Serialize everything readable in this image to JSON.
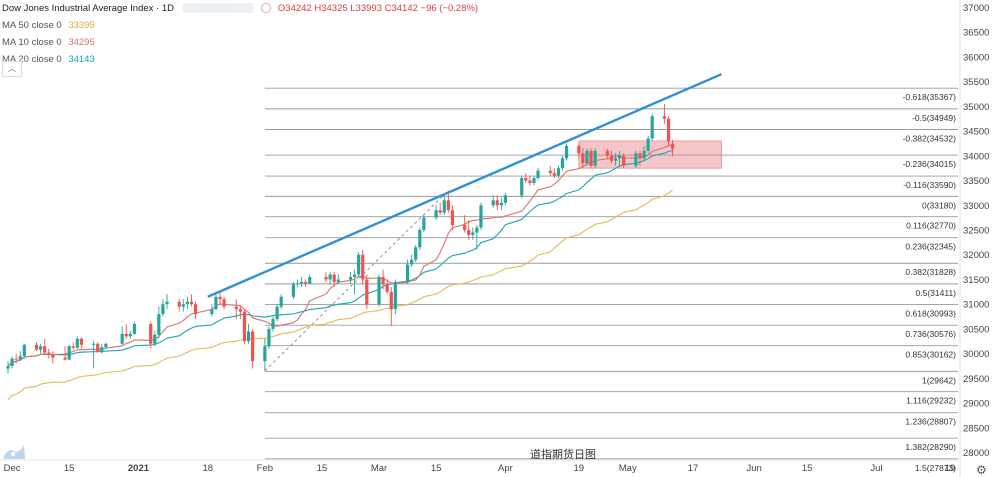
{
  "header": {
    "title": "Dow Jones Industrial Average Index · 1D",
    "ohlc": "O34242 H34325 L33993 C34142 −96 (−0.28%)"
  },
  "indicators": [
    {
      "label": "MA 50 close 0",
      "value": "33395",
      "color": "#e8b85a"
    },
    {
      "label": "MA 10 close 0",
      "value": "34295",
      "color": "#d9736a"
    },
    {
      "label": "MA 20 close 0",
      "value": "34143",
      "color": "#1aa3b8"
    }
  ],
  "footer_label": "道指期货日图",
  "settings_icon": "gear-icon",
  "colors": {
    "up": "#26a69a",
    "down": "#ef5350",
    "trendline": "#2f90d6",
    "zone": "#f2b1b5"
  },
  "chart_data": {
    "type": "candlestick",
    "y_axis": {
      "ticks": [
        28000,
        28500,
        29000,
        29500,
        30000,
        30500,
        31000,
        31500,
        32000,
        32500,
        33000,
        33500,
        34000,
        34500,
        35000,
        35500,
        36000,
        36500,
        37000
      ],
      "ylim": [
        27850,
        37150
      ]
    },
    "x_axis": {
      "ticks": [
        "Dec",
        "15",
        "2021",
        "18",
        "Feb",
        "15",
        "Mar",
        "15",
        "Apr",
        "19",
        "May",
        "17",
        "Jun",
        "15",
        "Jul",
        "19"
      ],
      "xlim": [
        "2020-11-30",
        "2021-07-21"
      ]
    },
    "fib_levels": [
      {
        "label": "-0.618(35367)",
        "value": 35367
      },
      {
        "label": "-0.5(34949)",
        "value": 34949
      },
      {
        "label": "-0.382(34532)",
        "value": 34532
      },
      {
        "label": "-0.236(34015)",
        "value": 34015
      },
      {
        "label": "-0.116(33590)",
        "value": 33590
      },
      {
        "label": "0(33180)",
        "value": 33180
      },
      {
        "label": "0.116(32770)",
        "value": 32770
      },
      {
        "label": "0.236(32345)",
        "value": 32345
      },
      {
        "label": "0.382(31828)",
        "value": 31828
      },
      {
        "label": "0.5(31411)",
        "value": 31411
      },
      {
        "label": "0.618(30993)",
        "value": 30993
      },
      {
        "label": "0.736(30576)",
        "value": 30576
      },
      {
        "label": "0.853(30162)",
        "value": 30162
      },
      {
        "label": "1(29642)",
        "value": 29642
      },
      {
        "label": "1.116(29232)",
        "value": 29232
      },
      {
        "label": "1.236(28807)",
        "value": 28807
      },
      {
        "label": "1.382(28290)",
        "value": 28290
      },
      {
        "label": "1.5(27873)",
        "value": 27873
      }
    ],
    "fib_start_date": "2021-02-01",
    "trendline": {
      "from": [
        "2021-01-18",
        31150
      ],
      "to": [
        "2021-05-24",
        35650
      ]
    },
    "zone": {
      "from_date": "2021-04-19",
      "to_date": "2021-05-24",
      "low": 33750,
      "high": 34300
    },
    "dashed_line": {
      "from": [
        "2021-02-01",
        29650
      ],
      "to": [
        "2021-03-18",
        33300
      ]
    },
    "candles": [
      {
        "d": "2020-11-30",
        "o": 29700,
        "h": 29850,
        "l": 29600,
        "c": 29750
      },
      {
        "d": "2020-12-01",
        "o": 29750,
        "h": 29950,
        "l": 29700,
        "c": 29900
      },
      {
        "d": "2020-12-02",
        "o": 29900,
        "h": 30000,
        "l": 29800,
        "c": 29880
      },
      {
        "d": "2020-12-03",
        "o": 29880,
        "h": 30050,
        "l": 29850,
        "c": 29950
      },
      {
        "d": "2020-12-04",
        "o": 29950,
        "h": 30200,
        "l": 29900,
        "c": 30180
      },
      {
        "d": "2020-12-07",
        "o": 30180,
        "h": 30230,
        "l": 30050,
        "c": 30080
      },
      {
        "d": "2020-12-08",
        "o": 30080,
        "h": 30200,
        "l": 30000,
        "c": 30150
      },
      {
        "d": "2020-12-09",
        "o": 30150,
        "h": 30300,
        "l": 29980,
        "c": 30020
      },
      {
        "d": "2020-12-10",
        "o": 30020,
        "h": 30100,
        "l": 29900,
        "c": 29980
      },
      {
        "d": "2020-12-11",
        "o": 29980,
        "h": 30050,
        "l": 29800,
        "c": 29920
      },
      {
        "d": "2020-12-14",
        "o": 29920,
        "h": 30150,
        "l": 29860,
        "c": 29880
      },
      {
        "d": "2020-12-15",
        "o": 29880,
        "h": 30180,
        "l": 29870,
        "c": 30150
      },
      {
        "d": "2020-12-16",
        "o": 30150,
        "h": 30230,
        "l": 30080,
        "c": 30120
      },
      {
        "d": "2020-12-17",
        "o": 30120,
        "h": 30350,
        "l": 30100,
        "c": 30300
      },
      {
        "d": "2020-12-18",
        "o": 30300,
        "h": 30330,
        "l": 30100,
        "c": 30180
      },
      {
        "d": "2020-12-21",
        "o": 30180,
        "h": 30250,
        "l": 29700,
        "c": 30200
      },
      {
        "d": "2020-12-22",
        "o": 30200,
        "h": 30230,
        "l": 30050,
        "c": 30030
      },
      {
        "d": "2020-12-23",
        "o": 30030,
        "h": 30200,
        "l": 30000,
        "c": 30130
      },
      {
        "d": "2020-12-24",
        "o": 30130,
        "h": 30220,
        "l": 30100,
        "c": 30200
      },
      {
        "d": "2020-12-28",
        "o": 30200,
        "h": 30550,
        "l": 30180,
        "c": 30400
      },
      {
        "d": "2020-12-29",
        "o": 30400,
        "h": 30600,
        "l": 30300,
        "c": 30350
      },
      {
        "d": "2020-12-30",
        "o": 30350,
        "h": 30450,
        "l": 30300,
        "c": 30400
      },
      {
        "d": "2020-12-31",
        "o": 30400,
        "h": 30650,
        "l": 30380,
        "c": 30600
      },
      {
        "d": "2021-01-04",
        "o": 30600,
        "h": 30650,
        "l": 30100,
        "c": 30200
      },
      {
        "d": "2021-01-05",
        "o": 30200,
        "h": 30450,
        "l": 30150,
        "c": 30380
      },
      {
        "d": "2021-01-06",
        "o": 30380,
        "h": 30950,
        "l": 30300,
        "c": 30800
      },
      {
        "d": "2021-01-07",
        "o": 30800,
        "h": 31100,
        "l": 30750,
        "c": 31000
      },
      {
        "d": "2021-01-08",
        "o": 31000,
        "h": 31200,
        "l": 30900,
        "c": 31050
      },
      {
        "d": "2021-01-11",
        "o": 31050,
        "h": 31100,
        "l": 30850,
        "c": 30950
      },
      {
        "d": "2021-01-12",
        "o": 30950,
        "h": 31100,
        "l": 30850,
        "c": 31000
      },
      {
        "d": "2021-01-13",
        "o": 31000,
        "h": 31150,
        "l": 30900,
        "c": 31050
      },
      {
        "d": "2021-01-14",
        "o": 31050,
        "h": 31200,
        "l": 30950,
        "c": 31000
      },
      {
        "d": "2021-01-15",
        "o": 31000,
        "h": 31050,
        "l": 30700,
        "c": 30800
      },
      {
        "d": "2021-01-19",
        "o": 30800,
        "h": 31000,
        "l": 30750,
        "c": 30900
      },
      {
        "d": "2021-01-20",
        "o": 30900,
        "h": 31200,
        "l": 30880,
        "c": 31150
      },
      {
        "d": "2021-01-21",
        "o": 31150,
        "h": 31250,
        "l": 31000,
        "c": 31100
      },
      {
        "d": "2021-01-22",
        "o": 31100,
        "h": 31150,
        "l": 30900,
        "c": 30950
      },
      {
        "d": "2021-01-25",
        "o": 30950,
        "h": 31100,
        "l": 30700,
        "c": 30900
      },
      {
        "d": "2021-01-26",
        "o": 30900,
        "h": 30950,
        "l": 30700,
        "c": 30850
      },
      {
        "d": "2021-01-27",
        "o": 30850,
        "h": 30900,
        "l": 30200,
        "c": 30250
      },
      {
        "d": "2021-01-28",
        "o": 30250,
        "h": 30600,
        "l": 30200,
        "c": 30450
      },
      {
        "d": "2021-01-29",
        "o": 30450,
        "h": 30500,
        "l": 29700,
        "c": 29850
      },
      {
        "d": "2021-02-01",
        "o": 29850,
        "h": 30300,
        "l": 29650,
        "c": 30150
      },
      {
        "d": "2021-02-02",
        "o": 30150,
        "h": 30550,
        "l": 30100,
        "c": 30500
      },
      {
        "d": "2021-02-03",
        "o": 30500,
        "h": 30750,
        "l": 30450,
        "c": 30700
      },
      {
        "d": "2021-02-04",
        "o": 30700,
        "h": 31000,
        "l": 30650,
        "c": 30950
      },
      {
        "d": "2021-02-05",
        "o": 30950,
        "h": 31200,
        "l": 30900,
        "c": 31150
      },
      {
        "d": "2021-02-08",
        "o": 31150,
        "h": 31450,
        "l": 31100,
        "c": 31400
      },
      {
        "d": "2021-02-09",
        "o": 31400,
        "h": 31500,
        "l": 31350,
        "c": 31420
      },
      {
        "d": "2021-02-10",
        "o": 31420,
        "h": 31550,
        "l": 31350,
        "c": 31450
      },
      {
        "d": "2021-02-11",
        "o": 31450,
        "h": 31500,
        "l": 31350,
        "c": 31420
      },
      {
        "d": "2021-02-12",
        "o": 31420,
        "h": 31600,
        "l": 31400,
        "c": 31550
      },
      {
        "d": "2021-02-16",
        "o": 31550,
        "h": 31650,
        "l": 31450,
        "c": 31500
      },
      {
        "d": "2021-02-17",
        "o": 31500,
        "h": 31650,
        "l": 31400,
        "c": 31600
      },
      {
        "d": "2021-02-18",
        "o": 31600,
        "h": 31650,
        "l": 31350,
        "c": 31450
      },
      {
        "d": "2021-02-19",
        "o": 31450,
        "h": 31600,
        "l": 31400,
        "c": 31500
      },
      {
        "d": "2021-02-22",
        "o": 31500,
        "h": 31650,
        "l": 31400,
        "c": 31550
      },
      {
        "d": "2021-02-23",
        "o": 31550,
        "h": 31700,
        "l": 31200,
        "c": 31600
      },
      {
        "d": "2021-02-24",
        "o": 31600,
        "h": 32050,
        "l": 31550,
        "c": 32000
      },
      {
        "d": "2021-02-25",
        "o": 32000,
        "h": 32100,
        "l": 31400,
        "c": 31500
      },
      {
        "d": "2021-02-26",
        "o": 31500,
        "h": 31600,
        "l": 30900,
        "c": 31000
      },
      {
        "d": "2021-03-01",
        "o": 31000,
        "h": 31600,
        "l": 30950,
        "c": 31550
      },
      {
        "d": "2021-03-02",
        "o": 31550,
        "h": 31700,
        "l": 31300,
        "c": 31400
      },
      {
        "d": "2021-03-03",
        "o": 31400,
        "h": 31500,
        "l": 31200,
        "c": 31250
      },
      {
        "d": "2021-03-04",
        "o": 31250,
        "h": 31350,
        "l": 30550,
        "c": 30900
      },
      {
        "d": "2021-03-05",
        "o": 30900,
        "h": 31500,
        "l": 30800,
        "c": 31450
      },
      {
        "d": "2021-03-08",
        "o": 31450,
        "h": 31900,
        "l": 31400,
        "c": 31800
      },
      {
        "d": "2021-03-09",
        "o": 31800,
        "h": 32000,
        "l": 31750,
        "c": 31900
      },
      {
        "d": "2021-03-10",
        "o": 31900,
        "h": 32200,
        "l": 31850,
        "c": 32150
      },
      {
        "d": "2021-03-11",
        "o": 32150,
        "h": 32550,
        "l": 32100,
        "c": 32500
      },
      {
        "d": "2021-03-12",
        "o": 32500,
        "h": 32800,
        "l": 32450,
        "c": 32750
      },
      {
        "d": "2021-03-15",
        "o": 32750,
        "h": 33000,
        "l": 32700,
        "c": 32900
      },
      {
        "d": "2021-03-16",
        "o": 32900,
        "h": 33050,
        "l": 32800,
        "c": 32850
      },
      {
        "d": "2021-03-17",
        "o": 32850,
        "h": 33200,
        "l": 32800,
        "c": 33100
      },
      {
        "d": "2021-03-18",
        "o": 33100,
        "h": 33300,
        "l": 32850,
        "c": 32900
      },
      {
        "d": "2021-03-19",
        "o": 32900,
        "h": 33000,
        "l": 32500,
        "c": 32600
      },
      {
        "d": "2021-03-22",
        "o": 32600,
        "h": 32800,
        "l": 32450,
        "c": 32500
      },
      {
        "d": "2021-03-23",
        "o": 32500,
        "h": 32700,
        "l": 32300,
        "c": 32400
      },
      {
        "d": "2021-03-24",
        "o": 32400,
        "h": 32550,
        "l": 32300,
        "c": 32450
      },
      {
        "d": "2021-03-25",
        "o": 32450,
        "h": 32600,
        "l": 32100,
        "c": 32550
      },
      {
        "d": "2021-03-26",
        "o": 32550,
        "h": 33050,
        "l": 32500,
        "c": 33000
      },
      {
        "d": "2021-03-29",
        "o": 33000,
        "h": 33200,
        "l": 32950,
        "c": 33100
      },
      {
        "d": "2021-03-30",
        "o": 33100,
        "h": 33200,
        "l": 32900,
        "c": 33000
      },
      {
        "d": "2021-03-31",
        "o": 33000,
        "h": 33150,
        "l": 32900,
        "c": 33050
      },
      {
        "d": "2021-04-01",
        "o": 33050,
        "h": 33250,
        "l": 33000,
        "c": 33200
      },
      {
        "d": "2021-04-05",
        "o": 33200,
        "h": 33600,
        "l": 33150,
        "c": 33550
      },
      {
        "d": "2021-04-06",
        "o": 33550,
        "h": 33650,
        "l": 33450,
        "c": 33500
      },
      {
        "d": "2021-04-07",
        "o": 33500,
        "h": 33600,
        "l": 33400,
        "c": 33450
      },
      {
        "d": "2021-04-08",
        "o": 33450,
        "h": 33600,
        "l": 33400,
        "c": 33550
      },
      {
        "d": "2021-04-09",
        "o": 33550,
        "h": 33750,
        "l": 33500,
        "c": 33700
      },
      {
        "d": "2021-04-12",
        "o": 33700,
        "h": 33800,
        "l": 33600,
        "c": 33650
      },
      {
        "d": "2021-04-13",
        "o": 33650,
        "h": 33750,
        "l": 33550,
        "c": 33600
      },
      {
        "d": "2021-04-14",
        "o": 33600,
        "h": 33800,
        "l": 33550,
        "c": 33750
      },
      {
        "d": "2021-04-15",
        "o": 33750,
        "h": 34000,
        "l": 33700,
        "c": 33950
      },
      {
        "d": "2021-04-16",
        "o": 33950,
        "h": 34250,
        "l": 33900,
        "c": 34200
      },
      {
        "d": "2021-04-19",
        "o": 34200,
        "h": 34250,
        "l": 33950,
        "c": 34050
      },
      {
        "d": "2021-04-20",
        "o": 34050,
        "h": 34150,
        "l": 33750,
        "c": 33850
      },
      {
        "d": "2021-04-21",
        "o": 33850,
        "h": 34150,
        "l": 33800,
        "c": 34100
      },
      {
        "d": "2021-04-22",
        "o": 34100,
        "h": 34150,
        "l": 33750,
        "c": 33800
      },
      {
        "d": "2021-04-23",
        "o": 33800,
        "h": 34150,
        "l": 33750,
        "c": 34100
      },
      {
        "d": "2021-04-26",
        "o": 34100,
        "h": 34150,
        "l": 33950,
        "c": 34000
      },
      {
        "d": "2021-04-27",
        "o": 34000,
        "h": 34100,
        "l": 33850,
        "c": 33900
      },
      {
        "d": "2021-04-28",
        "o": 33900,
        "h": 34050,
        "l": 33800,
        "c": 33950
      },
      {
        "d": "2021-04-29",
        "o": 33950,
        "h": 34100,
        "l": 33800,
        "c": 34000
      },
      {
        "d": "2021-04-30",
        "o": 34000,
        "h": 34050,
        "l": 33750,
        "c": 33800
      },
      {
        "d": "2021-05-03",
        "o": 33800,
        "h": 34100,
        "l": 33750,
        "c": 34050
      },
      {
        "d": "2021-05-04",
        "o": 34050,
        "h": 34100,
        "l": 33800,
        "c": 33950
      },
      {
        "d": "2021-05-05",
        "o": 33950,
        "h": 34200,
        "l": 33900,
        "c": 34100
      },
      {
        "d": "2021-05-06",
        "o": 34100,
        "h": 34400,
        "l": 34050,
        "c": 34350
      },
      {
        "d": "2021-05-07",
        "o": 34350,
        "h": 34850,
        "l": 34300,
        "c": 34800
      },
      {
        "d": "2021-05-10",
        "o": 34800,
        "h": 35050,
        "l": 34650,
        "c": 34750
      },
      {
        "d": "2021-05-11",
        "o": 34750,
        "h": 34800,
        "l": 34200,
        "c": 34300
      },
      {
        "d": "2021-05-12",
        "o": 34242,
        "h": 34325,
        "l": 33993,
        "c": 34142
      }
    ]
  }
}
